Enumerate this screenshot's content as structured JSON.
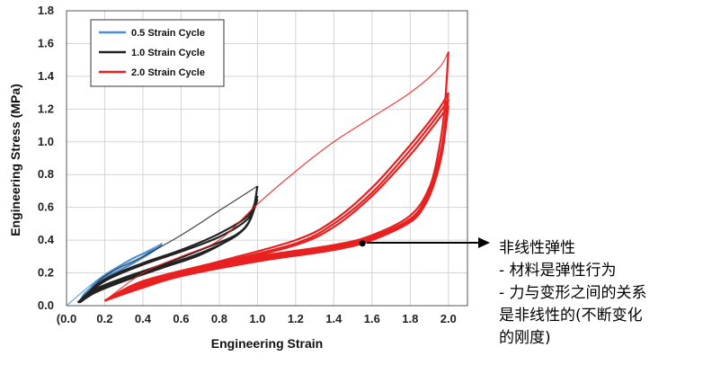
{
  "chart_data": {
    "type": "line",
    "title": "",
    "xlabel": "Engineering Strain",
    "ylabel": "Engineering Stress (MPa)",
    "xlim": [
      0.0,
      2.1
    ],
    "ylim": [
      0.0,
      1.8
    ],
    "x_ticks": [
      "(0.0",
      "0.2",
      "0.4",
      "0.6",
      "0.8",
      "1.0",
      "1.2",
      "1.4",
      "1.6",
      "1.8",
      "2.0"
    ],
    "x_tick_values": [
      0.0,
      0.2,
      0.4,
      0.6,
      0.8,
      1.0,
      1.2,
      1.4,
      1.6,
      1.8,
      2.0
    ],
    "y_ticks": [
      "0.0",
      "0.2",
      "0.4",
      "0.6",
      "0.8",
      "1.0",
      "1.2",
      "1.4",
      "1.6",
      "1.8"
    ],
    "y_tick_values": [
      0.0,
      0.2,
      0.4,
      0.6,
      0.8,
      1.0,
      1.2,
      1.4,
      1.6,
      1.8
    ],
    "legend_position": "top-left",
    "series": [
      {
        "name": "0.5 Strain Cycle",
        "color": "#4a90d9",
        "loops": [
          {
            "load": [
              [
                0.0,
                0.0
              ],
              [
                0.1,
                0.1
              ],
              [
                0.2,
                0.19
              ],
              [
                0.3,
                0.26
              ],
              [
                0.4,
                0.32
              ],
              [
                0.5,
                0.38
              ]
            ],
            "unload": [
              [
                0.5,
                0.38
              ],
              [
                0.45,
                0.33
              ],
              [
                0.35,
                0.26
              ],
              [
                0.25,
                0.2
              ],
              [
                0.15,
                0.13
              ],
              [
                0.08,
                0.04
              ],
              [
                0.07,
                0.02
              ]
            ]
          },
          {
            "load": [
              [
                0.07,
                0.02
              ],
              [
                0.15,
                0.14
              ],
              [
                0.25,
                0.22
              ],
              [
                0.35,
                0.29
              ],
              [
                0.45,
                0.34
              ],
              [
                0.5,
                0.37
              ]
            ],
            "unload": [
              [
                0.5,
                0.37
              ],
              [
                0.42,
                0.31
              ],
              [
                0.3,
                0.23
              ],
              [
                0.2,
                0.17
              ],
              [
                0.1,
                0.08
              ],
              [
                0.07,
                0.02
              ]
            ]
          }
        ]
      },
      {
        "name": "1.0 Strain Cycle",
        "color": "#222222",
        "loops": [
          {
            "load": [
              [
                0.07,
                0.02
              ],
              [
                0.2,
                0.18
              ],
              [
                0.4,
                0.3
              ],
              [
                0.6,
                0.43
              ],
              [
                0.8,
                0.58
              ],
              [
                1.0,
                0.73
              ]
            ],
            "unload": [
              [
                1.0,
                0.73
              ],
              [
                0.97,
                0.55
              ],
              [
                0.9,
                0.44
              ],
              [
                0.7,
                0.34
              ],
              [
                0.5,
                0.25
              ],
              [
                0.3,
                0.17
              ],
              [
                0.15,
                0.1
              ],
              [
                0.08,
                0.03
              ],
              [
                0.06,
                0.02
              ]
            ]
          },
          {
            "load": [
              [
                0.06,
                0.02
              ],
              [
                0.2,
                0.16
              ],
              [
                0.4,
                0.26
              ],
              [
                0.6,
                0.34
              ],
              [
                0.8,
                0.44
              ],
              [
                0.95,
                0.55
              ],
              [
                1.0,
                0.67
              ]
            ],
            "unload": [
              [
                1.0,
                0.67
              ],
              [
                0.96,
                0.52
              ],
              [
                0.88,
                0.42
              ],
              [
                0.7,
                0.32
              ],
              [
                0.5,
                0.24
              ],
              [
                0.3,
                0.16
              ],
              [
                0.15,
                0.09
              ],
              [
                0.06,
                0.02
              ]
            ]
          },
          {
            "load": [
              [
                0.06,
                0.02
              ],
              [
                0.2,
                0.15
              ],
              [
                0.4,
                0.25
              ],
              [
                0.6,
                0.33
              ],
              [
                0.8,
                0.42
              ],
              [
                0.95,
                0.53
              ],
              [
                1.0,
                0.65
              ]
            ],
            "unload": [
              [
                1.0,
                0.65
              ],
              [
                0.95,
                0.5
              ],
              [
                0.86,
                0.41
              ],
              [
                0.7,
                0.31
              ],
              [
                0.5,
                0.23
              ],
              [
                0.3,
                0.15
              ],
              [
                0.15,
                0.08
              ],
              [
                0.07,
                0.02
              ]
            ]
          }
        ]
      },
      {
        "name": "2.0 Strain Cycle",
        "color": "#e82020",
        "loops": [
          {
            "load": [
              [
                0.2,
                0.03
              ],
              [
                0.4,
                0.2
              ],
              [
                0.6,
                0.3
              ],
              [
                0.8,
                0.4
              ],
              [
                1.0,
                0.62
              ],
              [
                1.2,
                0.82
              ],
              [
                1.4,
                1.0
              ],
              [
                1.6,
                1.15
              ],
              [
                1.8,
                1.3
              ],
              [
                1.95,
                1.45
              ],
              [
                2.0,
                1.55
              ]
            ],
            "unload": [
              [
                2.0,
                1.55
              ],
              [
                1.98,
                1.2
              ],
              [
                1.95,
                0.95
              ],
              [
                1.9,
                0.72
              ],
              [
                1.8,
                0.55
              ],
              [
                1.6,
                0.43
              ],
              [
                1.4,
                0.37
              ],
              [
                1.0,
                0.3
              ],
              [
                0.6,
                0.21
              ],
              [
                0.4,
                0.14
              ],
              [
                0.25,
                0.06
              ],
              [
                0.2,
                0.03
              ]
            ]
          },
          {
            "load": [
              [
                0.2,
                0.03
              ],
              [
                0.4,
                0.15
              ],
              [
                0.8,
                0.27
              ],
              [
                1.2,
                0.4
              ],
              [
                1.4,
                0.52
              ],
              [
                1.6,
                0.72
              ],
              [
                1.8,
                0.98
              ],
              [
                1.95,
                1.2
              ],
              [
                2.0,
                1.3
              ]
            ],
            "unload": [
              [
                2.0,
                1.3
              ],
              [
                1.97,
                1.0
              ],
              [
                1.93,
                0.8
              ],
              [
                1.88,
                0.65
              ],
              [
                1.8,
                0.53
              ],
              [
                1.6,
                0.42
              ],
              [
                1.4,
                0.36
              ],
              [
                1.0,
                0.29
              ],
              [
                0.6,
                0.2
              ],
              [
                0.4,
                0.13
              ],
              [
                0.2,
                0.03
              ]
            ]
          },
          {
            "load": [
              [
                0.2,
                0.03
              ],
              [
                0.4,
                0.14
              ],
              [
                0.8,
                0.26
              ],
              [
                1.2,
                0.38
              ],
              [
                1.4,
                0.5
              ],
              [
                1.6,
                0.69
              ],
              [
                1.8,
                0.95
              ],
              [
                1.95,
                1.17
              ],
              [
                2.0,
                1.26
              ]
            ],
            "unload": [
              [
                2.0,
                1.26
              ],
              [
                1.97,
                0.97
              ],
              [
                1.93,
                0.78
              ],
              [
                1.88,
                0.63
              ],
              [
                1.8,
                0.52
              ],
              [
                1.6,
                0.41
              ],
              [
                1.4,
                0.35
              ],
              [
                1.0,
                0.28
              ],
              [
                0.6,
                0.19
              ],
              [
                0.4,
                0.12
              ],
              [
                0.2,
                0.03
              ]
            ]
          },
          {
            "load": [
              [
                0.2,
                0.03
              ],
              [
                0.4,
                0.13
              ],
              [
                0.8,
                0.25
              ],
              [
                1.2,
                0.37
              ],
              [
                1.4,
                0.48
              ],
              [
                1.6,
                0.67
              ],
              [
                1.8,
                0.92
              ],
              [
                1.95,
                1.14
              ],
              [
                2.0,
                1.22
              ]
            ],
            "unload": [
              [
                2.0,
                1.22
              ],
              [
                1.97,
                0.95
              ],
              [
                1.93,
                0.76
              ],
              [
                1.88,
                0.62
              ],
              [
                1.8,
                0.51
              ],
              [
                1.6,
                0.4
              ],
              [
                1.4,
                0.34
              ],
              [
                1.0,
                0.27
              ],
              [
                0.6,
                0.18
              ],
              [
                0.4,
                0.11
              ],
              [
                0.2,
                0.03
              ]
            ]
          }
        ]
      }
    ],
    "annotation": {
      "point": [
        1.55,
        0.38
      ],
      "lines": [
        "非线性弹性",
        "- 材料是弹性行为",
        "- 力与变形之间的关系",
        "是非线性的(不断变化",
        "的刚度)"
      ]
    }
  }
}
